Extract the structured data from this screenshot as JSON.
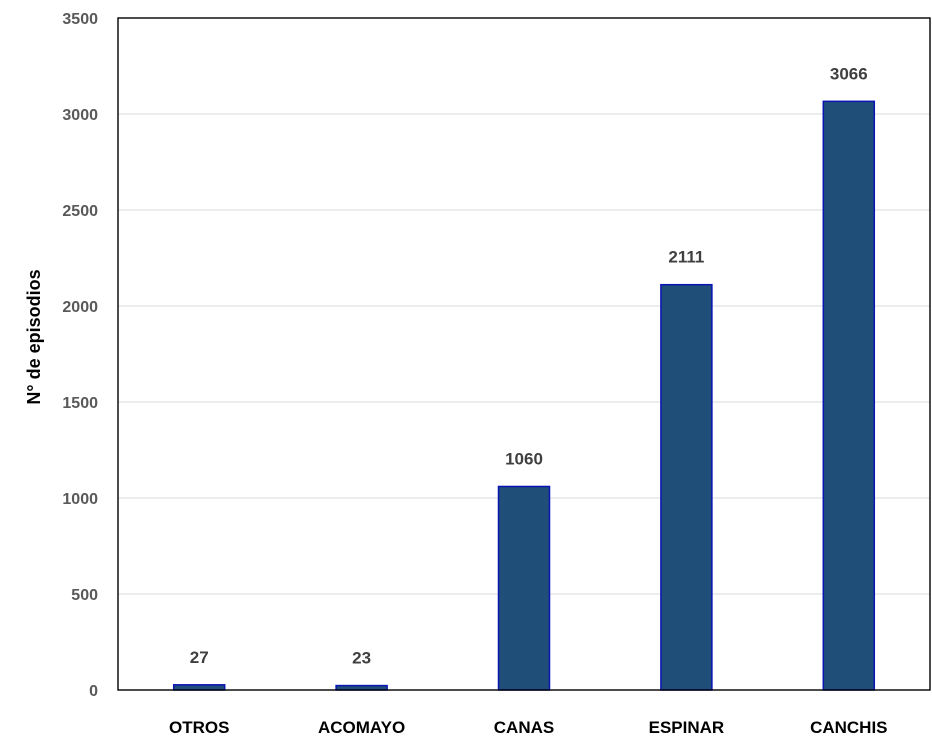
{
  "chart_data": {
    "type": "bar",
    "title": "",
    "xlabel": "",
    "ylabel": "N° de episodios",
    "categories": [
      "OTROS",
      "ACOMAYO",
      "CANAS",
      "ESPINAR",
      "CANCHIS"
    ],
    "values": [
      27,
      23,
      1060,
      2111,
      3066
    ],
    "data_labels": [
      "27",
      "23",
      "1060",
      "2111",
      "3066"
    ],
    "ylim": [
      0,
      3500
    ],
    "yticks": [
      0,
      500,
      1000,
      1500,
      2000,
      2500,
      3000,
      3500
    ],
    "grid": true,
    "legend": "none",
    "colors": {
      "bar_fill": "#1f4e79",
      "bar_stroke": "#0a14b4",
      "grid": "#d9d9d9",
      "frame": "#000000",
      "tick_text": "#595959",
      "value_text": "#404040"
    }
  }
}
